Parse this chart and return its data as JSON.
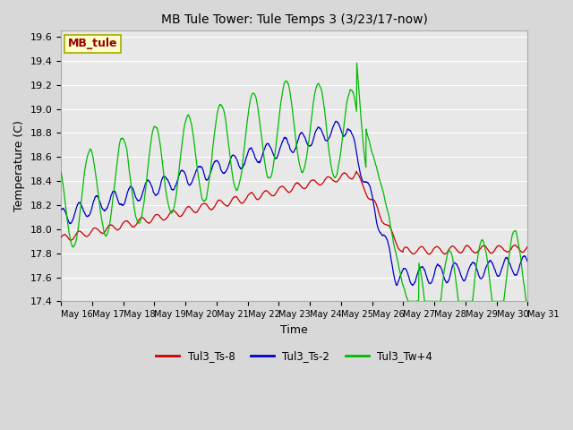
{
  "title": "MB Tule Tower: Tule Temps 3 (3/23/17-now)",
  "xlabel": "Time",
  "ylabel": "Temperature (C)",
  "ylim": [
    17.4,
    19.65
  ],
  "yticks": [
    17.4,
    17.6,
    17.8,
    18.0,
    18.2,
    18.4,
    18.6,
    18.8,
    19.0,
    19.2,
    19.4,
    19.6
  ],
  "bg_color": "#d8d8d8",
  "plot_bg_color": "#e8e8e8",
  "grid_color": "#ffffff",
  "legend_box_label": "MB_tule",
  "legend_box_bg": "#ffffcc",
  "legend_box_text": "#990000",
  "red_color": "#cc0000",
  "blue_color": "#0000cc",
  "green_color": "#00bb00",
  "x_tick_days": [
    16,
    17,
    18,
    19,
    20,
    21,
    22,
    23,
    24,
    25,
    26,
    27,
    28,
    29,
    30,
    31
  ],
  "figsize": [
    6.4,
    4.8
  ],
  "dpi": 100
}
